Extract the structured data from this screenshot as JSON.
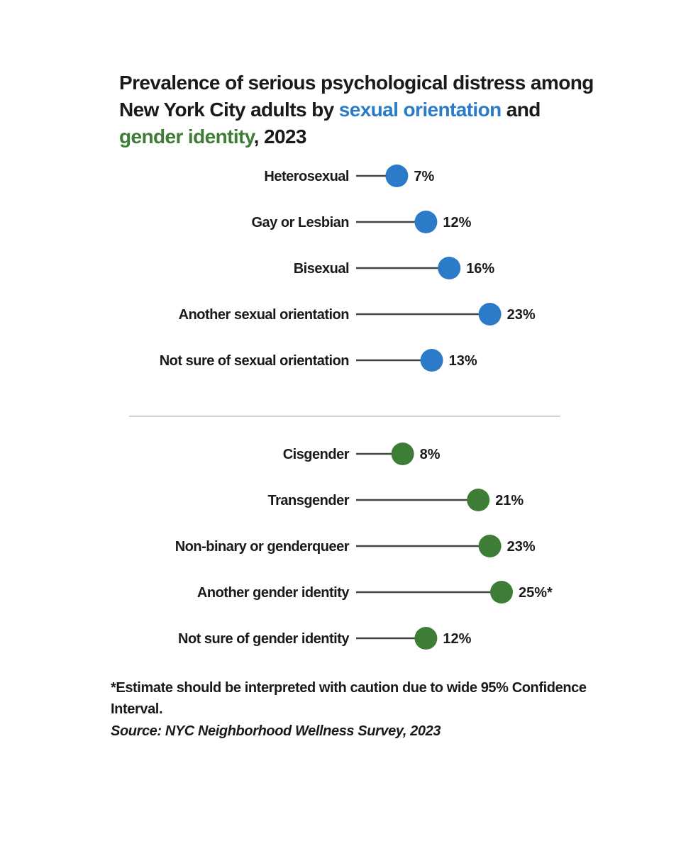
{
  "title": {
    "part1": "Prevalence of serious psychological distress among New York City adults by ",
    "highlight1": "sexual orientation",
    "part2": " and ",
    "highlight2": "gender identity",
    "part3": ", 2023"
  },
  "colors": {
    "sexual_orientation": "#2b7bc8",
    "gender_identity": "#3e7d35",
    "stem": "#444444",
    "divider": "#d4d4d4",
    "text": "#1a1a1a"
  },
  "chart_data": {
    "type": "lollipop",
    "title": "Prevalence of serious psychological distress among New York City adults by sexual orientation and gender identity, 2023",
    "unit": "%",
    "xlim": [
      0,
      30
    ],
    "groups": [
      {
        "name": "sexual orientation",
        "color": "#2b7bc8",
        "categories": [
          "Heterosexual",
          "Gay or Lesbian",
          "Bisexual",
          "Another sexual orientation",
          "Not sure of sexual orientation"
        ],
        "values": [
          7,
          12,
          16,
          23,
          13
        ],
        "labels": [
          "7%",
          "12%",
          "16%",
          "23%",
          "13%"
        ]
      },
      {
        "name": "gender identity",
        "color": "#3e7d35",
        "categories": [
          "Cisgender",
          "Transgender",
          "Non-binary or genderqueer",
          "Another gender identity",
          "Not sure of gender identity"
        ],
        "values": [
          8,
          21,
          23,
          25,
          12
        ],
        "labels": [
          "8%",
          "21%",
          "23%",
          "25%*",
          "12%"
        ]
      }
    ]
  },
  "footnote": "*Estimate should be interpreted with caution due to wide 95% Confidence Interval.",
  "source": "Source: NYC Neighborhood Wellness Survey, 2023"
}
